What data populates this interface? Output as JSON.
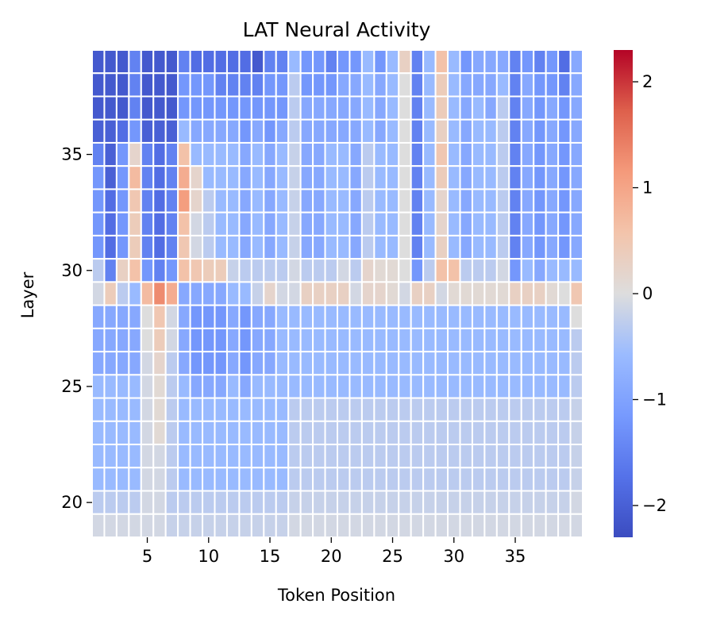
{
  "chart_data": {
    "type": "heatmap",
    "title": "LAT Neural Activity",
    "xlabel": "Token Position",
    "ylabel": "Layer",
    "x_range": [
      1,
      40
    ],
    "y_range": [
      19,
      39
    ],
    "x_ticks": [
      5,
      10,
      15,
      20,
      25,
      30,
      35
    ],
    "y_ticks": [
      35,
      30,
      25,
      20
    ],
    "colorbar": {
      "min": -2.3,
      "max": 2.3,
      "ticks": [
        2,
        1,
        0,
        -1,
        -2
      ],
      "tick_labels": [
        "2",
        "1",
        "0",
        "−1",
        "−2"
      ],
      "colormap": "coolwarm"
    },
    "values": [
      [
        -2.1,
        -2.1,
        -2.1,
        -1.5,
        -2.1,
        -2.1,
        -2.1,
        -1.5,
        -1.8,
        -1.8,
        -1.8,
        -1.8,
        -1.8,
        -2.1,
        -1.5,
        -1.5,
        -0.6,
        -1.2,
        -1.2,
        -1.5,
        -1.2,
        -1.2,
        -0.6,
        -1.2,
        -0.6,
        0.3,
        -1.5,
        -0.6,
        0.6,
        -0.6,
        -1.2,
        -0.9,
        -0.9,
        -0.9,
        -1.5,
        -1.2,
        -1.5,
        -1.2,
        -1.8,
        -0.9
      ],
      [
        -2.1,
        -2.1,
        -2.1,
        -1.5,
        -2.1,
        -2.1,
        -2.1,
        -1.2,
        -1.2,
        -1.2,
        -1.5,
        -1.5,
        -1.5,
        -1.5,
        -1.2,
        -1.2,
        -0.3,
        -1.2,
        -1.2,
        -1.2,
        -0.9,
        -0.9,
        -0.6,
        -0.9,
        -0.6,
        0.0,
        -1.5,
        -0.6,
        0.4,
        -0.6,
        -0.9,
        -0.9,
        -0.9,
        -0.6,
        -1.5,
        -0.9,
        -1.2,
        -1.2,
        -1.5,
        -0.9
      ],
      [
        -2.1,
        -2.1,
        -2.1,
        -1.5,
        -2.1,
        -2.1,
        -2.1,
        -1.2,
        -1.2,
        -1.2,
        -1.2,
        -1.2,
        -1.2,
        -1.2,
        -1.2,
        -1.2,
        -0.3,
        -0.9,
        -0.9,
        -0.9,
        -0.9,
        -0.9,
        -0.6,
        -0.9,
        -0.6,
        0.0,
        -1.5,
        -0.6,
        0.4,
        -0.6,
        -0.9,
        -0.6,
        -0.9,
        -0.3,
        -1.5,
        -0.9,
        -1.2,
        -0.9,
        -1.2,
        -0.9
      ],
      [
        -2.0,
        -2.0,
        -1.8,
        -1.2,
        -2.0,
        -2.0,
        -2.0,
        -0.6,
        -0.9,
        -0.9,
        -0.9,
        -0.9,
        -1.2,
        -0.9,
        -1.2,
        -0.9,
        -0.3,
        -0.9,
        -0.9,
        -0.9,
        -0.9,
        -0.9,
        -0.6,
        -0.9,
        -0.6,
        0.0,
        -1.5,
        -0.6,
        0.3,
        -0.6,
        -0.9,
        -0.6,
        -0.6,
        -0.3,
        -1.5,
        -0.9,
        -1.2,
        -0.9,
        -1.2,
        -0.9
      ],
      [
        -1.5,
        -2.0,
        -1.2,
        0.2,
        -1.5,
        -1.8,
        -1.5,
        0.6,
        -0.6,
        -0.6,
        -0.6,
        -0.6,
        -0.9,
        -0.6,
        -0.9,
        -0.6,
        -0.2,
        -0.9,
        -0.9,
        -0.6,
        -0.6,
        -0.9,
        -0.3,
        -0.6,
        -0.6,
        0.0,
        -1.5,
        -0.6,
        0.5,
        -0.6,
        -0.9,
        -0.6,
        -0.6,
        -0.3,
        -1.5,
        -0.9,
        -1.2,
        -0.9,
        -1.2,
        -0.9
      ],
      [
        -1.2,
        -2.0,
        -1.2,
        0.7,
        -1.5,
        -1.8,
        -1.5,
        0.9,
        0.2,
        -0.6,
        -0.6,
        -0.6,
        -0.9,
        -0.6,
        -0.9,
        -0.6,
        -0.2,
        -0.9,
        -0.9,
        -0.6,
        -0.6,
        -0.9,
        -0.3,
        -0.6,
        -0.6,
        0.0,
        -1.5,
        -0.6,
        0.4,
        -0.6,
        -0.9,
        -0.6,
        -0.6,
        -0.3,
        -1.5,
        -0.9,
        -1.2,
        -0.9,
        -1.2,
        -0.9
      ],
      [
        -1.2,
        -1.8,
        -1.2,
        0.5,
        -1.5,
        -1.8,
        -1.5,
        1.1,
        0.2,
        -0.3,
        -0.6,
        -0.6,
        -0.9,
        -0.6,
        -0.9,
        -0.6,
        -0.2,
        -0.9,
        -0.9,
        -0.6,
        -0.6,
        -0.9,
        -0.3,
        -0.6,
        -0.6,
        0.0,
        -1.5,
        -0.6,
        0.2,
        -0.6,
        -0.9,
        -0.6,
        -0.6,
        -0.3,
        -1.5,
        -0.9,
        -1.2,
        -0.9,
        -1.2,
        -0.9
      ],
      [
        -1.2,
        -1.8,
        -1.2,
        0.4,
        -1.5,
        -1.8,
        -1.5,
        0.6,
        -0.1,
        -0.3,
        -0.6,
        -0.6,
        -0.9,
        -0.6,
        -0.9,
        -0.6,
        -0.2,
        -0.9,
        -0.9,
        -0.6,
        -0.6,
        -0.9,
        -0.3,
        -0.6,
        -0.6,
        0.0,
        -1.5,
        -0.6,
        0.2,
        -0.6,
        -0.9,
        -0.6,
        -0.6,
        -0.3,
        -1.5,
        -0.9,
        -1.2,
        -0.9,
        -1.2,
        -0.9
      ],
      [
        -1.2,
        -1.8,
        -1.2,
        0.4,
        -1.5,
        -1.8,
        -1.5,
        0.5,
        -0.1,
        -0.3,
        -0.6,
        -0.6,
        -0.9,
        -0.6,
        -0.9,
        -0.6,
        -0.2,
        -0.9,
        -0.9,
        -0.6,
        -0.6,
        -0.9,
        -0.3,
        -0.6,
        -0.6,
        0.0,
        -1.5,
        -0.6,
        0.3,
        -0.6,
        -0.9,
        -0.6,
        -0.6,
        -0.3,
        -1.5,
        -0.9,
        -1.2,
        -0.9,
        -1.2,
        -0.9
      ],
      [
        -0.3,
        -1.5,
        0.3,
        0.6,
        -1.2,
        -1.5,
        -1.2,
        0.6,
        0.5,
        0.4,
        0.4,
        -0.2,
        -0.3,
        -0.3,
        -0.3,
        -0.3,
        -0.1,
        -0.3,
        -0.3,
        -0.3,
        -0.1,
        -0.3,
        0.2,
        0.1,
        0.1,
        0.0,
        -1.2,
        -0.3,
        0.6,
        0.6,
        -0.3,
        -0.3,
        -0.3,
        -0.1,
        -1.2,
        -0.6,
        -0.9,
        -0.6,
        -0.6,
        -0.6
      ],
      [
        -0.1,
        0.4,
        -0.3,
        -0.6,
        0.7,
        1.3,
        0.9,
        -0.9,
        -0.9,
        -0.9,
        -0.9,
        -0.6,
        -0.6,
        -0.2,
        0.2,
        -0.1,
        -0.1,
        0.3,
        0.3,
        0.3,
        0.3,
        -0.1,
        0.2,
        0.2,
        0.1,
        -0.1,
        0.3,
        0.3,
        -0.1,
        0.1,
        0.1,
        0.1,
        0.1,
        0.1,
        0.3,
        0.3,
        0.3,
        0.1,
        0.0,
        0.5
      ],
      [
        -0.9,
        -0.9,
        -0.9,
        -0.9,
        0.0,
        0.5,
        -0.1,
        -0.9,
        -1.2,
        -1.2,
        -1.2,
        -0.9,
        -1.2,
        -0.9,
        -0.9,
        -0.6,
        -0.6,
        -0.6,
        -0.6,
        -0.6,
        -0.6,
        -0.6,
        -0.6,
        -0.6,
        -0.6,
        -0.6,
        -0.6,
        -0.6,
        -0.6,
        -0.6,
        -0.6,
        -0.6,
        -0.6,
        -0.6,
        -0.6,
        -0.6,
        -0.6,
        -0.6,
        -0.6,
        0.0
      ],
      [
        -0.9,
        -0.9,
        -0.9,
        -0.9,
        0.0,
        0.4,
        -0.1,
        -0.9,
        -1.2,
        -1.2,
        -1.2,
        -0.9,
        -1.2,
        -0.9,
        -0.9,
        -0.6,
        -0.6,
        -0.6,
        -0.6,
        -0.6,
        -0.6,
        -0.6,
        -0.6,
        -0.6,
        -0.6,
        -0.6,
        -0.6,
        -0.6,
        -0.6,
        -0.6,
        -0.6,
        -0.6,
        -0.6,
        -0.6,
        -0.6,
        -0.6,
        -0.6,
        -0.6,
        -0.6,
        -0.3
      ],
      [
        -0.9,
        -0.9,
        -0.9,
        -0.9,
        -0.1,
        0.2,
        -0.3,
        -0.9,
        -1.2,
        -1.2,
        -1.2,
        -0.9,
        -1.2,
        -0.9,
        -0.9,
        -0.6,
        -0.6,
        -0.6,
        -0.6,
        -0.6,
        -0.6,
        -0.6,
        -0.6,
        -0.6,
        -0.6,
        -0.6,
        -0.6,
        -0.6,
        -0.6,
        -0.6,
        -0.6,
        -0.6,
        -0.6,
        -0.6,
        -0.6,
        -0.6,
        -0.6,
        -0.6,
        -0.6,
        -0.3
      ],
      [
        -0.6,
        -0.6,
        -0.6,
        -0.6,
        -0.1,
        0.1,
        -0.3,
        -0.6,
        -0.9,
        -0.9,
        -0.9,
        -0.6,
        -0.9,
        -0.6,
        -0.6,
        -0.6,
        -0.6,
        -0.6,
        -0.6,
        -0.6,
        -0.6,
        -0.6,
        -0.6,
        -0.6,
        -0.6,
        -0.6,
        -0.6,
        -0.6,
        -0.6,
        -0.6,
        -0.6,
        -0.6,
        -0.6,
        -0.6,
        -0.6,
        -0.6,
        -0.6,
        -0.6,
        -0.6,
        -0.3
      ],
      [
        -0.6,
        -0.6,
        -0.6,
        -0.6,
        -0.1,
        0.1,
        -0.3,
        -0.6,
        -0.6,
        -0.6,
        -0.6,
        -0.6,
        -0.6,
        -0.6,
        -0.6,
        -0.6,
        -0.3,
        -0.3,
        -0.3,
        -0.3,
        -0.3,
        -0.3,
        -0.3,
        -0.3,
        -0.3,
        -0.3,
        -0.3,
        -0.3,
        -0.3,
        -0.3,
        -0.3,
        -0.3,
        -0.3,
        -0.3,
        -0.3,
        -0.3,
        -0.3,
        -0.3,
        -0.3,
        -0.2
      ],
      [
        -0.6,
        -0.6,
        -0.6,
        -0.6,
        -0.1,
        0.1,
        -0.3,
        -0.6,
        -0.6,
        -0.6,
        -0.6,
        -0.6,
        -0.6,
        -0.6,
        -0.6,
        -0.6,
        -0.3,
        -0.3,
        -0.3,
        -0.3,
        -0.3,
        -0.3,
        -0.3,
        -0.3,
        -0.3,
        -0.3,
        -0.3,
        -0.3,
        -0.3,
        -0.3,
        -0.3,
        -0.3,
        -0.3,
        -0.3,
        -0.3,
        -0.3,
        -0.3,
        -0.3,
        -0.3,
        -0.2
      ],
      [
        -0.6,
        -0.6,
        -0.6,
        -0.6,
        -0.1,
        -0.1,
        -0.3,
        -0.6,
        -0.6,
        -0.6,
        -0.6,
        -0.6,
        -0.6,
        -0.6,
        -0.6,
        -0.6,
        -0.3,
        -0.3,
        -0.3,
        -0.3,
        -0.3,
        -0.3,
        -0.3,
        -0.3,
        -0.3,
        -0.3,
        -0.3,
        -0.3,
        -0.3,
        -0.3,
        -0.3,
        -0.3,
        -0.3,
        -0.3,
        -0.3,
        -0.3,
        -0.3,
        -0.3,
        -0.3,
        -0.2
      ],
      [
        -0.6,
        -0.6,
        -0.6,
        -0.6,
        -0.1,
        -0.1,
        -0.3,
        -0.6,
        -0.6,
        -0.6,
        -0.6,
        -0.6,
        -0.6,
        -0.6,
        -0.6,
        -0.6,
        -0.3,
        -0.3,
        -0.3,
        -0.3,
        -0.3,
        -0.3,
        -0.3,
        -0.3,
        -0.3,
        -0.3,
        -0.3,
        -0.3,
        -0.3,
        -0.3,
        -0.3,
        -0.3,
        -0.3,
        -0.3,
        -0.3,
        -0.3,
        -0.3,
        -0.3,
        -0.3,
        -0.2
      ],
      [
        -0.3,
        -0.3,
        -0.3,
        -0.3,
        -0.1,
        -0.1,
        -0.3,
        -0.3,
        -0.3,
        -0.3,
        -0.3,
        -0.3,
        -0.3,
        -0.3,
        -0.3,
        -0.3,
        -0.2,
        -0.2,
        -0.2,
        -0.2,
        -0.2,
        -0.2,
        -0.2,
        -0.2,
        -0.2,
        -0.2,
        -0.2,
        -0.2,
        -0.2,
        -0.2,
        -0.2,
        -0.2,
        -0.2,
        -0.2,
        -0.2,
        -0.2,
        -0.2,
        -0.2,
        -0.2,
        -0.1
      ],
      [
        -0.1,
        -0.1,
        -0.1,
        -0.1,
        -0.1,
        -0.1,
        -0.2,
        -0.2,
        -0.2,
        -0.2,
        -0.2,
        -0.2,
        -0.2,
        -0.2,
        -0.2,
        -0.2,
        -0.1,
        -0.1,
        -0.1,
        -0.1,
        -0.1,
        -0.1,
        -0.1,
        -0.1,
        -0.1,
        -0.1,
        -0.1,
        -0.1,
        -0.1,
        -0.1,
        -0.1,
        -0.1,
        -0.1,
        -0.1,
        -0.1,
        -0.1,
        -0.1,
        -0.1,
        -0.1,
        -0.1
      ]
    ]
  }
}
